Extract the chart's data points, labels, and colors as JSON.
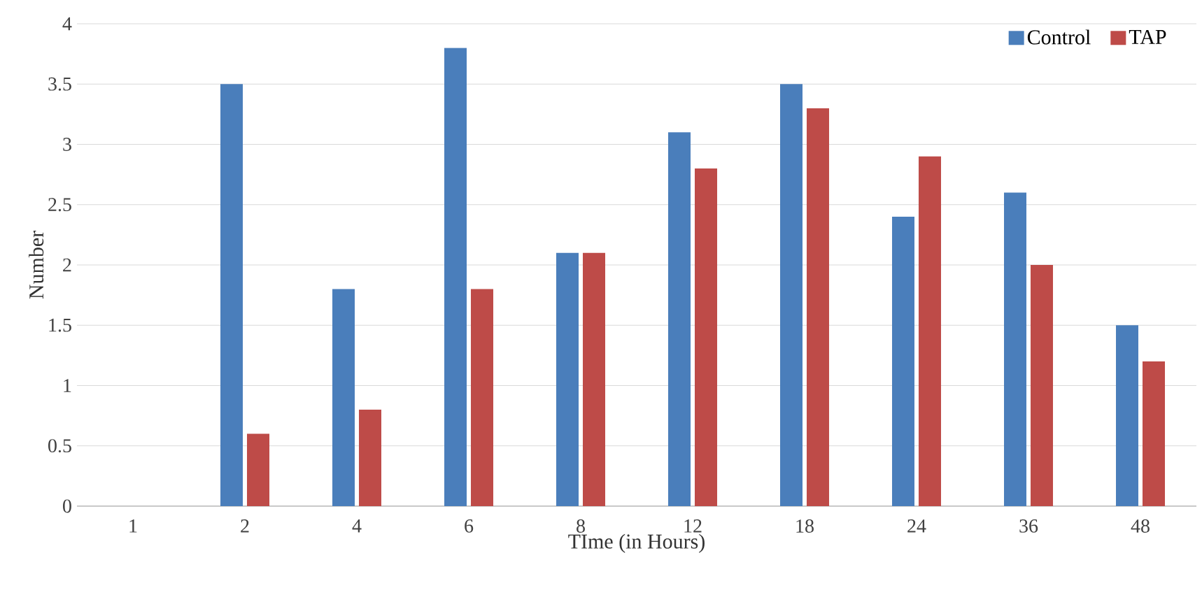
{
  "chart_data": {
    "type": "bar",
    "xlabel": "TIme (in Hours)",
    "ylabel": "Number",
    "categories": [
      "1",
      "2",
      "4",
      "6",
      "8",
      "12",
      "18",
      "24",
      "36",
      "48"
    ],
    "series": [
      {
        "name": "Control",
        "color": "#4a7ebb",
        "values": [
          0,
          3.5,
          1.8,
          3.8,
          2.1,
          3.1,
          3.5,
          2.4,
          2.6,
          1.5
        ]
      },
      {
        "name": "TAP",
        "color": "#be4b48",
        "values": [
          0,
          0.6,
          0.8,
          1.8,
          2.1,
          2.8,
          3.3,
          2.9,
          2.0,
          1.2
        ]
      }
    ],
    "ylim": [
      0,
      4
    ],
    "yticks": [
      0,
      0.5,
      1,
      1.5,
      2,
      2.5,
      3,
      3.5,
      4
    ],
    "grid": "y",
    "legend": "top right"
  }
}
